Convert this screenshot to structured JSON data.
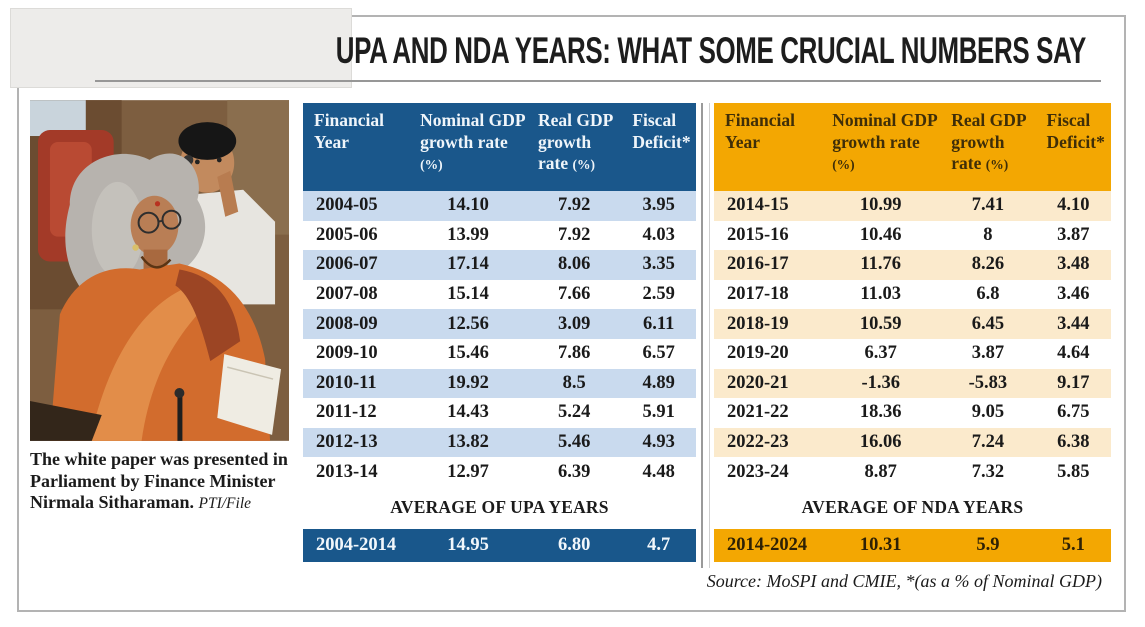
{
  "title": "UPA AND NDA YEARS: WHAT SOME CRUCIAL NUMBERS SAY",
  "photo_caption": {
    "text": "The white paper was presented in Parliament by Finance Minister Nirmala Sitharaman.",
    "credit": "PTI/File"
  },
  "colors": {
    "upa_header_blue": "#1a578b",
    "upa_row_shade": "#c9daee",
    "nda_header_orange": "#f3a702",
    "nda_row_shade": "#fbeacc"
  },
  "upa_table": {
    "headers": [
      {
        "label": "Financial Year",
        "unit": ""
      },
      {
        "label": "Nominal GDP growth rate",
        "unit": "(%)"
      },
      {
        "label": "Real GDP growth rate",
        "unit": "(%)"
      },
      {
        "label": "Fiscal Deficit*",
        "unit": ""
      }
    ],
    "rows": [
      [
        "2004-05",
        "14.10",
        "7.92",
        "3.95"
      ],
      [
        "2005-06",
        "13.99",
        "7.92",
        "4.03"
      ],
      [
        "2006-07",
        "17.14",
        "8.06",
        "3.35"
      ],
      [
        "2007-08",
        "15.14",
        "7.66",
        "2.59"
      ],
      [
        "2008-09",
        "12.56",
        "3.09",
        "6.11"
      ],
      [
        "2009-10",
        "15.46",
        "7.86",
        "6.57"
      ],
      [
        "2010-11",
        "19.92",
        "8.5",
        "4.89"
      ],
      [
        "2011-12",
        "14.43",
        "5.24",
        "5.91"
      ],
      [
        "2012-13",
        "13.82",
        "5.46",
        "4.93"
      ],
      [
        "2013-14",
        "12.97",
        "6.39",
        "4.48"
      ]
    ],
    "average_label": "AVERAGE OF UPA YEARS",
    "average_row": [
      "2004-2014",
      "14.95",
      "6.80",
      "4.7"
    ]
  },
  "nda_table": {
    "headers": [
      {
        "label": "Financial Year",
        "unit": ""
      },
      {
        "label": "Nominal GDP growth rate",
        "unit": "(%)"
      },
      {
        "label": "Real GDP growth rate",
        "unit": "(%)"
      },
      {
        "label": "Fiscal Deficit*",
        "unit": ""
      }
    ],
    "rows": [
      [
        "2014-15",
        "10.99",
        "7.41",
        "4.10"
      ],
      [
        "2015-16",
        "10.46",
        "8",
        "3.87"
      ],
      [
        "2016-17",
        "11.76",
        "8.26",
        "3.48"
      ],
      [
        "2017-18",
        "11.03",
        "6.8",
        "3.46"
      ],
      [
        "2018-19",
        "10.59",
        "6.45",
        "3.44"
      ],
      [
        "2019-20",
        "6.37",
        "3.87",
        "4.64"
      ],
      [
        "2020-21",
        "-1.36",
        "-5.83",
        "9.17"
      ],
      [
        "2021-22",
        "18.36",
        "9.05",
        "6.75"
      ],
      [
        "2022-23",
        "16.06",
        "7.24",
        "6.38"
      ],
      [
        "2023-24",
        "8.87",
        "7.32",
        "5.85"
      ]
    ],
    "average_label": "AVERAGE OF NDA YEARS",
    "average_row": [
      "2014-2024",
      "10.31",
      "5.9",
      "5.1"
    ]
  },
  "source_note": "Source: MoSPI and CMIE, *(as a % of Nominal GDP)"
}
